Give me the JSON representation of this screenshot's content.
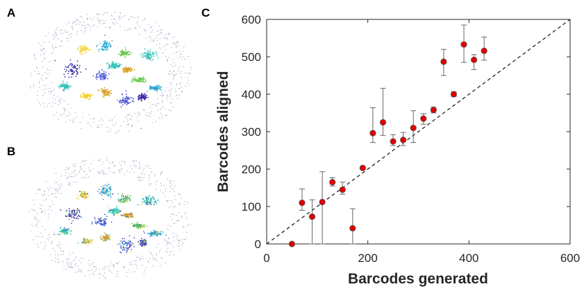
{
  "panels": {
    "a": {
      "label": "A"
    },
    "b": {
      "label": "B"
    },
    "c": {
      "label": "C"
    }
  },
  "embedding_colors": [
    "#3b2fa5",
    "#4a55d6",
    "#2ba9d6",
    "#27c2b4",
    "#6bc750",
    "#f2d43a",
    "#d9a020",
    "#a8a8c8"
  ],
  "chart_data": {
    "type": "scatter",
    "xlabel": "Barcodes generated",
    "ylabel": "Barcodes aligned",
    "xlim": [
      0,
      600
    ],
    "ylim": [
      0,
      600
    ],
    "xticks": [
      0,
      200,
      400,
      600
    ],
    "yticks": [
      0,
      100,
      200,
      300,
      400,
      500,
      600
    ],
    "grid": false,
    "reference_line": {
      "style": "dashed",
      "x": [
        0,
        600
      ],
      "y": [
        0,
        600
      ]
    },
    "marker_color": "#e00000",
    "points": [
      {
        "x": 50,
        "y": 0,
        "err_low": 0,
        "err_high": 0
      },
      {
        "x": 70,
        "y": 110,
        "err_low": 90,
        "err_high": 147
      },
      {
        "x": 90,
        "y": 73,
        "err_low": 0,
        "err_high": 118
      },
      {
        "x": 110,
        "y": 112,
        "err_low": 0,
        "err_high": 193
      },
      {
        "x": 130,
        "y": 165,
        "err_low": 155,
        "err_high": 177
      },
      {
        "x": 150,
        "y": 145,
        "err_low": 133,
        "err_high": 165
      },
      {
        "x": 170,
        "y": 42,
        "err_low": 0,
        "err_high": 94
      },
      {
        "x": 190,
        "y": 203,
        "err_low": 199,
        "err_high": 207
      },
      {
        "x": 210,
        "y": 296,
        "err_low": 271,
        "err_high": 364
      },
      {
        "x": 230,
        "y": 325,
        "err_low": 290,
        "err_high": 416
      },
      {
        "x": 250,
        "y": 274,
        "err_low": 263,
        "err_high": 292
      },
      {
        "x": 270,
        "y": 278,
        "err_low": 263,
        "err_high": 298
      },
      {
        "x": 290,
        "y": 310,
        "err_low": 271,
        "err_high": 356
      },
      {
        "x": 310,
        "y": 335,
        "err_low": 320,
        "err_high": 348
      },
      {
        "x": 330,
        "y": 358,
        "err_low": 350,
        "err_high": 366
      },
      {
        "x": 350,
        "y": 487,
        "err_low": 450,
        "err_high": 520
      },
      {
        "x": 370,
        "y": 400,
        "err_low": 394,
        "err_high": 407
      },
      {
        "x": 390,
        "y": 533,
        "err_low": 485,
        "err_high": 585
      },
      {
        "x": 410,
        "y": 492,
        "err_low": 466,
        "err_high": 506
      },
      {
        "x": 430,
        "y": 516,
        "err_low": 491,
        "err_high": 553
      }
    ]
  }
}
